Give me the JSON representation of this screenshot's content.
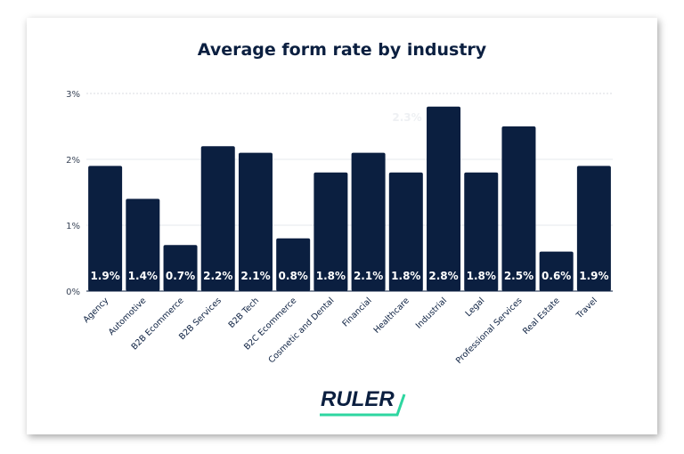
{
  "chart_data": {
    "type": "bar",
    "title": "Average form rate by industry",
    "categories": [
      "Agency",
      "Automotive",
      "B2B Ecommerce",
      "B2B Services",
      "B2B Tech",
      "B2C Ecommerce",
      "Cosmetic and Dental",
      "Financial",
      "Healthcare",
      "Industrial",
      "Legal",
      "Professional Services",
      "Real Estate",
      "Travel"
    ],
    "values": [
      1.9,
      1.4,
      0.7,
      2.2,
      2.1,
      0.8,
      1.8,
      2.1,
      1.8,
      2.8,
      1.8,
      2.5,
      0.6,
      1.9
    ],
    "data_labels": [
      "1.9%",
      "1.4%",
      "0.7%",
      "2.2%",
      "2.1%",
      "0.8%",
      "1.8%",
      "2.1%",
      "1.8%",
      "2.8%",
      "1.8%",
      "2.5%",
      "0.6%",
      "1.9%"
    ],
    "ylim": [
      0,
      3
    ],
    "yticks": [
      0,
      1,
      2,
      3
    ],
    "ytick_labels": [
      "0%",
      "1%",
      "2%",
      "3%"
    ],
    "xlabel": "",
    "ylabel": "",
    "grid": true,
    "annotation": "2.3%",
    "bar_color": "#0b1f40",
    "label_color": "#ffffff"
  },
  "brand": {
    "logo_text": "RULER",
    "accent": "#2ed6a0"
  }
}
